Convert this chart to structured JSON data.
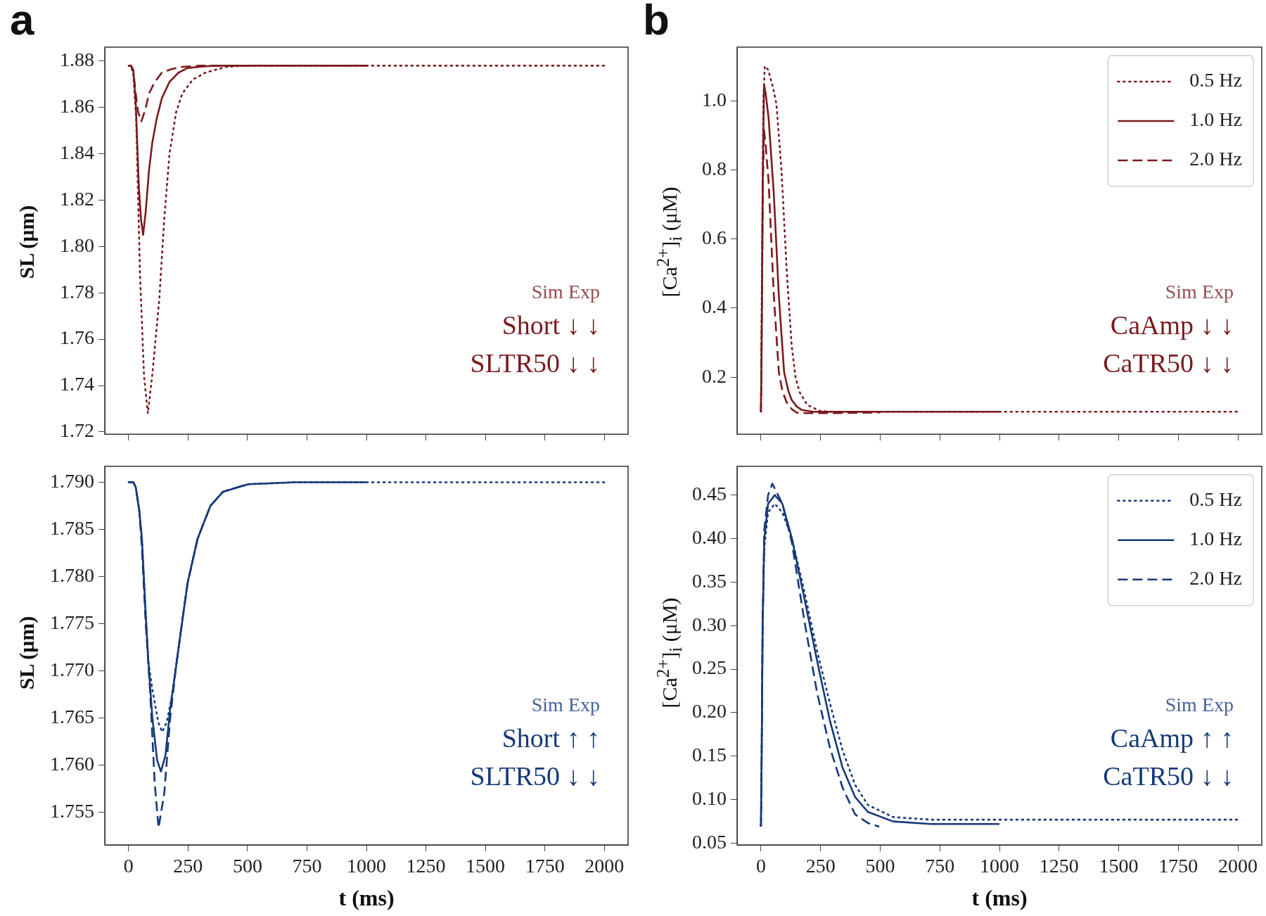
{
  "chart_data": [
    {
      "type": "line",
      "title": "a",
      "ylabel": "SL (μm)",
      "xlim": [
        -100,
        2100
      ],
      "xticks": [
        0,
        250,
        500,
        750,
        1000,
        1250,
        1500,
        1750,
        2000
      ],
      "ylim": [
        1.719,
        1.886
      ],
      "yticks": [
        1.72,
        1.74,
        1.76,
        1.78,
        {
          "value": 1.8,
          "label": "1.80"
        },
        1.82,
        1.84,
        1.86,
        1.88
      ],
      "tick_labels": "y",
      "marker": "none",
      "annotations": [
        "Sim Exp",
        "Short ↓ ↓",
        "SLTR50 ↓ ↓"
      ],
      "series": [
        {
          "color": "#7b1a1e",
          "line_style": "dotted",
          "x": [
            0,
            10,
            20,
            32,
            48,
            65,
            81,
            100,
            129,
            150,
            172,
            200,
            226,
            270,
            323,
            410,
            500,
            750,
            1000,
            1500,
            2000
          ],
          "values": [
            1.878,
            1.878,
            1.874,
            1.855,
            1.788,
            1.744,
            1.728,
            1.745,
            1.777,
            1.812,
            1.84,
            1.858,
            1.866,
            1.872,
            1.875,
            1.8775,
            1.878,
            1.878,
            1.878,
            1.878,
            1.878
          ]
        },
        {
          "color": "#7b1a1e",
          "line_style": "solid",
          "x": [
            0,
            10,
            20,
            30,
            43,
            52,
            61,
            72,
            86,
            100,
            118,
            140,
            172,
            210,
            248,
            300,
            356,
            500,
            750,
            1000
          ],
          "values": [
            1.878,
            1.878,
            1.876,
            1.862,
            1.826,
            1.812,
            1.805,
            1.815,
            1.833,
            1.845,
            1.855,
            1.864,
            1.871,
            1.875,
            1.877,
            1.8775,
            1.878,
            1.878,
            1.878,
            1.878
          ]
        },
        {
          "color": "#7b1a1e",
          "line_style": "dashed",
          "x": [
            0,
            10,
            20,
            30,
            40,
            54,
            70,
            86,
            110,
            140,
            180,
            226,
            300,
            400,
            500
          ],
          "values": [
            1.878,
            1.878,
            1.876,
            1.866,
            1.858,
            1.854,
            1.859,
            1.866,
            1.871,
            1.875,
            1.8765,
            1.8775,
            1.878,
            1.878,
            1.878
          ]
        }
      ]
    },
    {
      "type": "line",
      "title": "b",
      "ylabel": "[Ca$^{2+}$]$_{i}$ (μM)",
      "xlim": [
        -100,
        2100
      ],
      "xticks": [
        0,
        250,
        500,
        750,
        1000,
        1250,
        1500,
        1750,
        2000
      ],
      "ylim": [
        0.035,
        1.155
      ],
      "yticks": [
        0.2,
        0.4,
        0.6,
        0.8,
        {
          "value": 1,
          "label": "1.0"
        }
      ],
      "tick_labels": "y",
      "marker": "none",
      "legend": "top right",
      "annotations": [
        "Sim Exp",
        "CaAmp ↓ ↓",
        "CaTR50 ↓ ↓"
      ],
      "series": [
        {
          "name": "0.5 Hz",
          "color": "#7b1a1e",
          "line_style": "dotted",
          "x": [
            0,
            5,
            10,
            16,
            30,
            50,
            65,
            86,
            108,
            129,
            145,
            162,
            194,
            248,
            300,
            500,
            1000,
            1500,
            2000
          ],
          "values": [
            0.1,
            0.6,
            1.0,
            1.1,
            1.09,
            1.04,
            0.99,
            0.8,
            0.51,
            0.29,
            0.2,
            0.157,
            0.12,
            0.102,
            0.1,
            0.1,
            0.1,
            0.1,
            0.1
          ]
        },
        {
          "name": "1.0 Hz",
          "color": "#7b1a1e",
          "line_style": "solid",
          "x": [
            0,
            3,
            8,
            13,
            20,
            32,
            54,
            75,
            97,
            115,
            129,
            150,
            172,
            220,
            330,
            500,
            1000
          ],
          "values": [
            0.1,
            0.3,
            0.8,
            1.046,
            1.02,
            0.95,
            0.73,
            0.436,
            0.215,
            0.16,
            0.134,
            0.115,
            0.105,
            0.1,
            0.1,
            0.1,
            0.1
          ]
        },
        {
          "name": "2.0 Hz",
          "color": "#7b1a1e",
          "line_style": "dashed",
          "x": [
            0,
            3,
            8,
            13,
            20,
            32,
            54,
            75,
            90,
            108,
            130,
            151,
            200,
            300,
            500
          ],
          "values": [
            0.1,
            0.3,
            0.75,
            0.914,
            0.87,
            0.767,
            0.436,
            0.215,
            0.16,
            0.127,
            0.107,
            0.097,
            0.096,
            0.096,
            0.098
          ]
        }
      ]
    },
    {
      "type": "line",
      "ylabel": "SL (μm)",
      "xlabel": "t (ms)",
      "xlim": [
        -100,
        2100
      ],
      "xticks": [
        0,
        250,
        500,
        750,
        1000,
        1250,
        1500,
        1750,
        2000
      ],
      "ylim": [
        1.7515,
        1.7917
      ],
      "yticks": [
        1.755,
        {
          "value": 1.76,
          "label": "1.760"
        },
        1.765,
        {
          "value": 1.77,
          "label": "1.770"
        },
        1.775,
        {
          "value": 1.78,
          "label": "1.780"
        },
        1.785,
        {
          "value": 1.79,
          "label": "1.790"
        }
      ],
      "marker": "none",
      "annotations": [
        "Sim Exp",
        "Short ↑ ↑",
        "SLTR50 ↓ ↓"
      ],
      "series": [
        {
          "color": "#16397a",
          "line_style": "dotted",
          "x": [
            0,
            20,
            30,
            45,
            56,
            72,
            83,
            100,
            125,
            141,
            160,
            180,
            200,
            216,
            248,
            290,
            344,
            397,
            503,
            700,
            1000,
            1500,
            2000
          ],
          "values": [
            1.79,
            1.79,
            1.7895,
            1.787,
            1.784,
            1.776,
            1.771,
            1.768,
            1.7645,
            1.7635,
            1.7645,
            1.767,
            1.7705,
            1.7735,
            1.7793,
            1.784,
            1.7875,
            1.789,
            1.7898,
            1.79,
            1.79,
            1.79,
            1.79
          ]
        },
        {
          "color": "#16397a",
          "line_style": "solid",
          "x": [
            0,
            20,
            30,
            45,
            56,
            72,
            83,
            100,
            120,
            136,
            155,
            175,
            200,
            216,
            248,
            290,
            344,
            397,
            503,
            700,
            1000
          ],
          "values": [
            1.79,
            1.79,
            1.7895,
            1.787,
            1.784,
            1.776,
            1.771,
            1.765,
            1.7605,
            1.7593,
            1.761,
            1.766,
            1.7705,
            1.7735,
            1.7793,
            1.784,
            1.7875,
            1.789,
            1.7898,
            1.79,
            1.79
          ]
        },
        {
          "color": "#16397a",
          "line_style": "dashed",
          "x": [
            0,
            20,
            30,
            45,
            56,
            72,
            90,
            110,
            126,
            150,
            175,
            200,
            216,
            248,
            290,
            344,
            397,
            500
          ],
          "values": [
            1.79,
            1.79,
            1.7895,
            1.787,
            1.783,
            1.775,
            1.768,
            1.758,
            1.7533,
            1.757,
            1.765,
            1.7705,
            1.7735,
            1.7793,
            1.784,
            1.7875,
            1.789,
            1.7898
          ]
        }
      ]
    },
    {
      "type": "line",
      "ylabel": "[Ca$^{2+}$]$_{i}$ (μM)",
      "xlabel": "t (ms)",
      "xlim": [
        -100,
        2100
      ],
      "xticks": [
        0,
        250,
        500,
        750,
        1000,
        1250,
        1500,
        1750,
        2000
      ],
      "ylim": [
        0.048,
        0.483
      ],
      "yticks": [
        0.05,
        {
          "value": 0.1,
          "label": "0.10"
        },
        0.15,
        {
          "value": 0.2,
          "label": "0.20"
        },
        0.25,
        {
          "value": 0.3,
          "label": "0.30"
        },
        0.35,
        {
          "value": 0.4,
          "label": "0.40"
        },
        0.45
      ],
      "marker": "none",
      "legend": "top right",
      "annotations": [
        "Sim Exp",
        "CaAmp ↑ ↑",
        "CaTR50 ↓ ↓"
      ],
      "series": [
        {
          "name": "0.5 Hz",
          "color": "#16397a",
          "line_style": "dotted",
          "x": [
            0,
            3,
            7,
            14,
            30,
            58,
            90,
            130,
            183,
            236,
            289,
            342,
            395,
            448,
            554,
            713,
            1000,
            1500,
            2000
          ],
          "values": [
            0.07,
            0.15,
            0.3,
            0.39,
            0.43,
            0.44,
            0.43,
            0.4,
            0.338,
            0.27,
            0.211,
            0.157,
            0.117,
            0.094,
            0.08,
            0.077,
            0.077,
            0.077,
            0.077
          ]
        },
        {
          "name": "1.0 Hz",
          "color": "#16397a",
          "line_style": "solid",
          "x": [
            0,
            3,
            7,
            14,
            30,
            58,
            90,
            130,
            183,
            236,
            289,
            342,
            395,
            448,
            554,
            713,
            1000
          ],
          "values": [
            0.069,
            0.15,
            0.3,
            0.4,
            0.44,
            0.45,
            0.44,
            0.4,
            0.33,
            0.259,
            0.191,
            0.137,
            0.103,
            0.086,
            0.075,
            0.072,
            0.072
          ]
        },
        {
          "name": "2.0 Hz",
          "color": "#16397a",
          "line_style": "dashed",
          "x": [
            0,
            3,
            7,
            14,
            30,
            48,
            90,
            130,
            183,
            236,
            289,
            342,
            395,
            450,
            496
          ],
          "values": [
            0.069,
            0.15,
            0.3,
            0.41,
            0.45,
            0.463,
            0.44,
            0.395,
            0.304,
            0.222,
            0.16,
            0.114,
            0.083,
            0.073,
            0.069
          ]
        }
      ]
    }
  ]
}
